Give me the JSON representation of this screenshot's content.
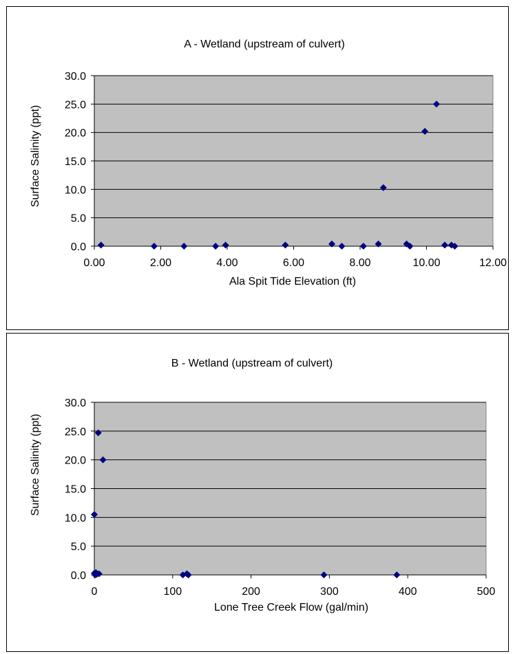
{
  "chart_data": [
    {
      "type": "scatter",
      "title": "A - Wetland (upstream of culvert)",
      "xlabel": "Ala Spit Tide Elevation (ft)",
      "ylabel": "Surface Salinity (ppt)",
      "xlim": [
        0,
        12
      ],
      "ylim": [
        0,
        30
      ],
      "xticks": [
        "0.00",
        "2.00",
        "4.00",
        "6.00",
        "8.00",
        "10.00",
        "12.00"
      ],
      "yticks": [
        "0.0",
        "5.0",
        "10.0",
        "15.0",
        "20.0",
        "25.0",
        "30.0"
      ],
      "grid": "horizontal",
      "legend": "none",
      "plot_background": "#c0c0c0",
      "marker_color": "#000080",
      "marker": "diamond",
      "points": [
        {
          "x": 0.2,
          "y": 0.2
        },
        {
          "x": 1.8,
          "y": 0.0
        },
        {
          "x": 2.7,
          "y": 0.0
        },
        {
          "x": 3.65,
          "y": 0.0
        },
        {
          "x": 3.95,
          "y": 0.2
        },
        {
          "x": 5.75,
          "y": 0.2
        },
        {
          "x": 7.15,
          "y": 0.4
        },
        {
          "x": 7.45,
          "y": 0.0
        },
        {
          "x": 8.1,
          "y": 0.0
        },
        {
          "x": 8.55,
          "y": 0.4
        },
        {
          "x": 8.7,
          "y": 10.3
        },
        {
          "x": 9.4,
          "y": 0.4
        },
        {
          "x": 9.5,
          "y": 0.0
        },
        {
          "x": 9.95,
          "y": 20.2
        },
        {
          "x": 10.3,
          "y": 25.0
        },
        {
          "x": 10.55,
          "y": 0.2
        },
        {
          "x": 10.75,
          "y": 0.2
        },
        {
          "x": 10.85,
          "y": 0.0
        }
      ]
    },
    {
      "type": "scatter",
      "title": "B - Wetland (upstream of culvert)",
      "xlabel": "Lone Tree Creek Flow (gal/min)",
      "ylabel": "Surface Salinity (ppt)",
      "xlim": [
        0,
        500
      ],
      "ylim": [
        0,
        30
      ],
      "xticks": [
        "0",
        "100",
        "200",
        "300",
        "400",
        "500"
      ],
      "yticks": [
        "0.0",
        "5.0",
        "10.0",
        "15.0",
        "20.0",
        "25.0",
        "30.0"
      ],
      "grid": "horizontal",
      "legend": "none",
      "plot_background": "#c0c0c0",
      "marker_color": "#000080",
      "marker": "diamond",
      "points": [
        {
          "x": 0,
          "y": 10.5
        },
        {
          "x": 0,
          "y": 0.3
        },
        {
          "x": 1,
          "y": 0.0
        },
        {
          "x": 2,
          "y": 0.4
        },
        {
          "x": 3,
          "y": 0.1
        },
        {
          "x": 5,
          "y": 24.7
        },
        {
          "x": 6,
          "y": 0.2
        },
        {
          "x": 11,
          "y": 20.0
        },
        {
          "x": 113,
          "y": 0.0
        },
        {
          "x": 118,
          "y": 0.2
        },
        {
          "x": 120,
          "y": 0.0
        },
        {
          "x": 293,
          "y": 0.0
        },
        {
          "x": 386,
          "y": 0.0
        }
      ]
    }
  ]
}
